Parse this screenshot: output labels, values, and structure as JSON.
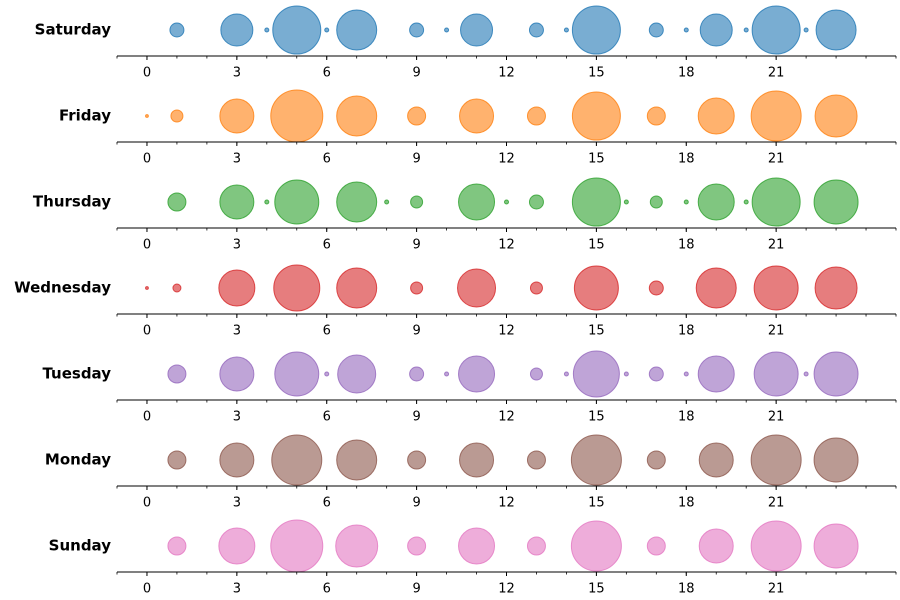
{
  "chart_data": {
    "type": "bubble",
    "x": [
      0,
      1,
      2,
      3,
      4,
      5,
      6,
      7,
      8,
      9,
      10,
      11,
      12,
      13,
      14,
      15,
      16,
      17,
      18,
      19,
      20,
      21,
      22,
      23
    ],
    "xlim": [
      -1,
      25
    ],
    "xticks": [
      0,
      3,
      6,
      9,
      12,
      15,
      18,
      21
    ],
    "xticks_minor": [
      -1,
      0,
      1,
      2,
      3,
      4,
      5,
      6,
      7,
      8,
      9,
      10,
      11,
      12,
      13,
      14,
      15,
      16,
      17,
      18,
      19,
      20,
      21,
      22,
      23,
      24,
      25
    ],
    "series": [
      {
        "name": "Saturday",
        "color": "#1f77b4",
        "values": [
          0,
          49,
          0,
          256,
          4,
          576,
          4,
          400,
          0,
          49,
          4,
          256,
          0,
          49,
          4,
          576,
          0,
          49,
          4,
          256,
          4,
          576,
          4,
          400
        ]
      },
      {
        "name": "Friday",
        "color": "#ff7f0e",
        "values": [
          2,
          36,
          0,
          289,
          0,
          676,
          0,
          400,
          0,
          81,
          0,
          289,
          0,
          81,
          0,
          576,
          0,
          81,
          0,
          324,
          0,
          625,
          0,
          441
        ]
      },
      {
        "name": "Thursday",
        "color": "#2ca02c",
        "values": [
          0,
          81,
          0,
          289,
          4,
          484,
          0,
          400,
          4,
          36,
          0,
          324,
          4,
          49,
          0,
          576,
          4,
          36,
          4,
          324,
          4,
          576,
          0,
          484
        ]
      },
      {
        "name": "Wednesday",
        "color": "#d62728",
        "values": [
          2,
          16,
          0,
          324,
          0,
          529,
          0,
          400,
          0,
          36,
          0,
          361,
          0,
          36,
          0,
          484,
          0,
          49,
          0,
          400,
          0,
          484,
          0,
          441
        ]
      },
      {
        "name": "Tuesday",
        "color": "#9467bd",
        "values": [
          0,
          81,
          0,
          289,
          0,
          484,
          4,
          361,
          0,
          49,
          4,
          324,
          0,
          36,
          4,
          529,
          4,
          49,
          4,
          324,
          0,
          484,
          4,
          484
        ]
      },
      {
        "name": "Monday",
        "color": "#8c564b",
        "values": [
          0,
          81,
          0,
          289,
          0,
          625,
          0,
          400,
          0,
          81,
          0,
          289,
          0,
          81,
          0,
          625,
          0,
          81,
          0,
          289,
          0,
          625,
          0,
          484
        ]
      },
      {
        "name": "Sunday",
        "color": "#e377c2",
        "values": [
          0,
          81,
          0,
          324,
          0,
          676,
          0,
          441,
          0,
          81,
          0,
          324,
          0,
          81,
          0,
          625,
          0,
          81,
          0,
          289,
          0,
          625,
          0,
          484
        ]
      }
    ]
  }
}
